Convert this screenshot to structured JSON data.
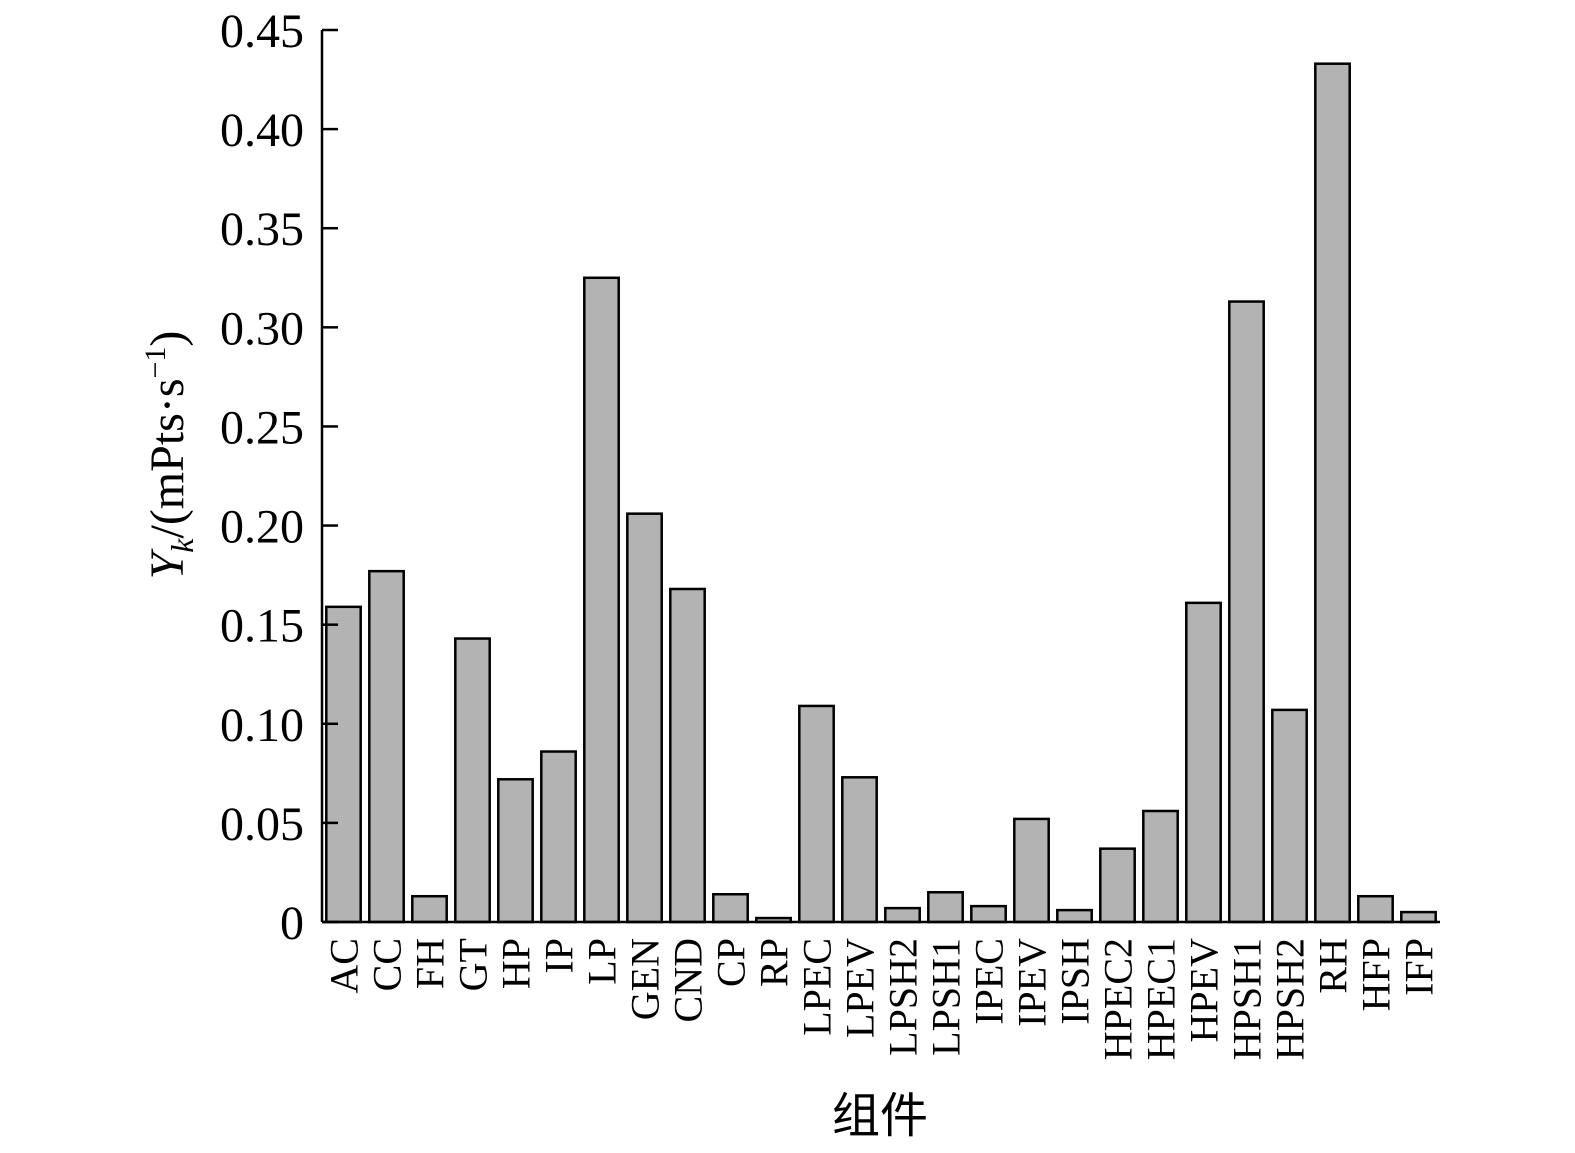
{
  "chart_data": {
    "type": "bar",
    "categories": [
      "AC",
      "CC",
      "FH",
      "GT",
      "HP",
      "IP",
      "LP",
      "GEN",
      "CND",
      "CP",
      "RP",
      "LPEC",
      "LPEV",
      "LPSH2",
      "LPSH1",
      "IPEC",
      "IPEV",
      "IPSH",
      "HPEC2",
      "HPEC1",
      "HPEV",
      "HPSH1",
      "HPSH2",
      "RH",
      "HFP",
      "IFP"
    ],
    "values": [
      0.159,
      0.177,
      0.013,
      0.143,
      0.072,
      0.086,
      0.325,
      0.206,
      0.168,
      0.014,
      0.002,
      0.109,
      0.073,
      0.007,
      0.015,
      0.008,
      0.052,
      0.006,
      0.037,
      0.056,
      0.161,
      0.313,
      0.107,
      0.433,
      0.013,
      0.005
    ],
    "title": "",
    "xlabel": "组件",
    "ylabel": {
      "symbol": "Y",
      "subscript": "k",
      "unit": "/(mPts·s",
      "exponent": "−1",
      "close": ")"
    },
    "ylim": [
      0,
      0.45
    ],
    "yticks": [
      0,
      0.05,
      0.1,
      0.15,
      0.2,
      0.25,
      0.3,
      0.35,
      0.4,
      0.45
    ],
    "ytick_labels": [
      "0",
      "0.05",
      "0.10",
      "0.15",
      "0.20",
      "0.25",
      "0.30",
      "0.35",
      "0.40",
      "0.45"
    ],
    "grid": false,
    "legend": "none",
    "bar_color": "#b3b3b3",
    "edge_color": "#000000"
  }
}
